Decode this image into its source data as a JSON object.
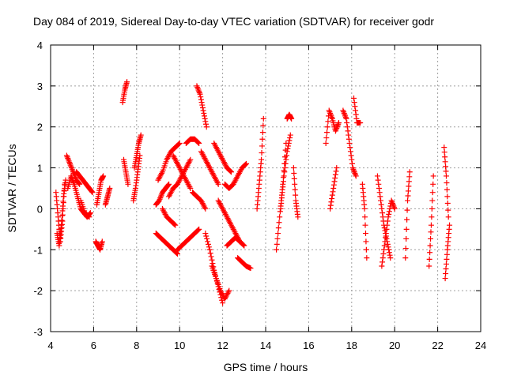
{
  "chart_data": {
    "type": "scatter",
    "title": "Day 084 of 2019, Sidereal Day-to-day VTEC variation (SDTVAR) for receiver godr",
    "xlabel": "GPS time / hours",
    "ylabel": "SDTVAR / TECUs",
    "xlim": [
      4,
      24
    ],
    "ylim": [
      -3,
      4
    ],
    "xticks": [
      "4",
      "6",
      "8",
      "10",
      "12",
      "14",
      "16",
      "18",
      "20",
      "22",
      "24"
    ],
    "yticks": [
      "-3",
      "-2",
      "-1",
      "0",
      "1",
      "2",
      "3",
      "4"
    ],
    "grid": true,
    "marker": "+",
    "color": "#ff0000",
    "segments": [
      {
        "x": [
          4.25,
          4.35,
          4.45,
          4.55,
          4.65
        ],
        "y": [
          0.4,
          -0.2,
          -0.8,
          -0.3,
          0.6
        ]
      },
      {
        "x": [
          4.3,
          4.4,
          4.5,
          4.6,
          4.7
        ],
        "y": [
          -0.6,
          -0.9,
          -0.4,
          0.3,
          0.7
        ]
      },
      {
        "x": [
          4.75,
          4.9,
          5.05,
          5.2,
          5.35
        ],
        "y": [
          1.3,
          1.1,
          0.9,
          0.7,
          0.6
        ]
      },
      {
        "x": [
          4.8,
          4.95,
          5.1,
          5.25,
          5.4,
          5.55,
          5.7,
          5.85
        ],
        "y": [
          0.5,
          0.8,
          0.6,
          0.3,
          0.0,
          -0.1,
          -0.2,
          -0.1
        ]
      },
      {
        "x": [
          5.2,
          5.35,
          5.5,
          5.65,
          5.8,
          5.95
        ],
        "y": [
          0.9,
          0.8,
          0.7,
          0.6,
          0.5,
          0.4
        ]
      },
      {
        "x": [
          5.4,
          5.6,
          5.8
        ],
        "y": [
          0.2,
          -0.1,
          -0.2
        ]
      },
      {
        "x": [
          6.1,
          6.2,
          6.3,
          6.4
        ],
        "y": [
          -0.8,
          -0.9,
          -1.0,
          -0.8
        ]
      },
      {
        "x": [
          6.15,
          6.25,
          6.35,
          6.45
        ],
        "y": [
          0.1,
          0.4,
          0.7,
          0.8
        ]
      },
      {
        "x": [
          6.55,
          6.65,
          6.75
        ],
        "y": [
          0.1,
          0.3,
          0.5
        ]
      },
      {
        "x": [
          7.35,
          7.45,
          7.55
        ],
        "y": [
          2.6,
          2.9,
          3.1
        ]
      },
      {
        "x": [
          7.4,
          7.5,
          7.6
        ],
        "y": [
          1.2,
          0.9,
          0.6
        ]
      },
      {
        "x": [
          7.85,
          7.95,
          8.05,
          8.15
        ],
        "y": [
          0.2,
          0.5,
          0.9,
          1.3
        ]
      },
      {
        "x": [
          7.9,
          8.0,
          8.1,
          8.2
        ],
        "y": [
          1.0,
          1.3,
          1.6,
          1.8
        ]
      },
      {
        "x": [
          8.9,
          9.05,
          9.2,
          9.35,
          9.5
        ],
        "y": [
          0.1,
          0.2,
          0.4,
          0.5,
          0.6
        ]
      },
      {
        "x": [
          8.9,
          9.1,
          9.3,
          9.5,
          9.7,
          9.9
        ],
        "y": [
          -0.6,
          -0.7,
          -0.8,
          -0.9,
          -1.0,
          -1.1
        ]
      },
      {
        "x": [
          9.0,
          9.2,
          9.4,
          9.6,
          9.8,
          10.0
        ],
        "y": [
          0.7,
          0.9,
          1.2,
          1.4,
          1.5,
          1.6
        ]
      },
      {
        "x": [
          9.2,
          9.4,
          9.6,
          9.8
        ],
        "y": [
          0.0,
          -0.2,
          -0.3,
          -0.4
        ]
      },
      {
        "x": [
          9.5,
          9.7,
          9.9,
          10.1,
          10.3,
          10.5
        ],
        "y": [
          0.3,
          0.5,
          0.6,
          0.8,
          1.0,
          1.2
        ]
      },
      {
        "x": [
          9.7,
          9.9,
          10.1,
          10.3,
          10.5
        ],
        "y": [
          1.3,
          1.1,
          0.9,
          0.7,
          0.5
        ]
      },
      {
        "x": [
          9.9,
          10.1,
          10.3,
          10.5,
          10.7,
          10.9
        ],
        "y": [
          -1.0,
          -0.9,
          -0.8,
          -0.7,
          -0.6,
          -0.5
        ]
      },
      {
        "x": [
          10.3,
          10.5,
          10.7,
          10.9
        ],
        "y": [
          1.6,
          1.7,
          1.7,
          1.6
        ]
      },
      {
        "x": [
          10.6,
          10.8,
          11.0,
          11.2
        ],
        "y": [
          0.4,
          0.3,
          0.2,
          0.0
        ]
      },
      {
        "x": [
          10.8,
          10.95,
          11.1,
          11.25
        ],
        "y": [
          3.0,
          2.8,
          2.4,
          2.0
        ]
      },
      {
        "x": [
          11.0,
          11.2,
          11.4,
          11.6,
          11.8
        ],
        "y": [
          1.4,
          1.2,
          1.0,
          0.8,
          0.6
        ]
      },
      {
        "x": [
          11.2,
          11.4,
          11.6,
          11.8,
          12.0
        ],
        "y": [
          -0.6,
          -1.0,
          -1.5,
          -1.9,
          -2.3
        ]
      },
      {
        "x": [
          11.5,
          11.7,
          11.9,
          12.1,
          12.3
        ],
        "y": [
          -1.4,
          -1.7,
          -2.0,
          -2.2,
          -2.0
        ]
      },
      {
        "x": [
          11.6,
          11.8,
          12.0,
          12.2,
          12.4
        ],
        "y": [
          1.6,
          1.4,
          1.2,
          1.0,
          0.9
        ]
      },
      {
        "x": [
          11.8,
          12.0,
          12.2,
          12.4,
          12.6,
          12.8
        ],
        "y": [
          0.2,
          0.0,
          -0.2,
          -0.4,
          -0.6,
          -0.8
        ]
      },
      {
        "x": [
          12.1,
          12.3,
          12.5,
          12.7,
          12.9,
          13.1
        ],
        "y": [
          0.6,
          0.5,
          0.6,
          0.8,
          1.0,
          1.1
        ]
      },
      {
        "x": [
          12.2,
          12.4,
          12.6,
          12.8,
          13.0
        ],
        "y": [
          -0.9,
          -0.8,
          -0.7,
          -0.8,
          -0.9
        ]
      },
      {
        "x": [
          12.7,
          12.9,
          13.1,
          13.3
        ],
        "y": [
          -1.2,
          -1.3,
          -1.4,
          -1.45
        ]
      },
      {
        "x": [
          13.6,
          13.7,
          13.8,
          13.9
        ],
        "y": [
          0.0,
          0.6,
          1.2,
          2.2
        ]
      },
      {
        "x": [
          14.5,
          14.65,
          14.8,
          14.95
        ],
        "y": [
          -1.0,
          -0.2,
          0.6,
          1.6
        ]
      },
      {
        "x": [
          14.7,
          14.85,
          15.0,
          15.15
        ],
        "y": [
          0.0,
          0.8,
          1.4,
          1.8
        ]
      },
      {
        "x": [
          15.0,
          15.1,
          15.2
        ],
        "y": [
          2.2,
          2.3,
          2.2
        ]
      },
      {
        "x": [
          15.3,
          15.4,
          15.5
        ],
        "y": [
          1.0,
          0.2,
          -0.2
        ]
      },
      {
        "x": [
          16.8,
          16.95,
          17.1,
          17.25,
          17.4
        ],
        "y": [
          1.6,
          2.4,
          2.2,
          1.9,
          2.1
        ]
      },
      {
        "x": [
          17.0,
          17.15,
          17.3
        ],
        "y": [
          0.0,
          0.5,
          1.0
        ]
      },
      {
        "x": [
          17.6,
          17.75,
          17.9,
          18.05,
          18.2
        ],
        "y": [
          2.4,
          2.2,
          1.6,
          1.0,
          0.8
        ]
      },
      {
        "x": [
          18.1,
          18.25,
          18.4
        ],
        "y": [
          2.7,
          2.1,
          2.1
        ]
      },
      {
        "x": [
          18.5,
          18.6,
          18.7
        ],
        "y": [
          0.6,
          0.0,
          -1.2
        ]
      },
      {
        "x": [
          19.2,
          19.35,
          19.5,
          19.65,
          19.8
        ],
        "y": [
          0.8,
          0.2,
          -0.4,
          -0.8,
          -1.2
        ]
      },
      {
        "x": [
          19.4,
          19.55,
          19.7,
          19.85,
          20.0
        ],
        "y": [
          -1.4,
          -0.8,
          -0.2,
          0.2,
          0.0
        ]
      },
      {
        "x": [
          20.5,
          20.6,
          20.7
        ],
        "y": [
          -1.2,
          0.2,
          0.9
        ]
      },
      {
        "x": [
          21.6,
          21.7,
          21.8
        ],
        "y": [
          -1.4,
          -0.4,
          0.8
        ]
      },
      {
        "x": [
          22.3,
          22.4,
          22.5
        ],
        "y": [
          1.5,
          0.8,
          -0.2
        ]
      },
      {
        "x": [
          22.35,
          22.45,
          22.55
        ],
        "y": [
          -1.7,
          -1.0,
          -0.4
        ]
      }
    ]
  }
}
